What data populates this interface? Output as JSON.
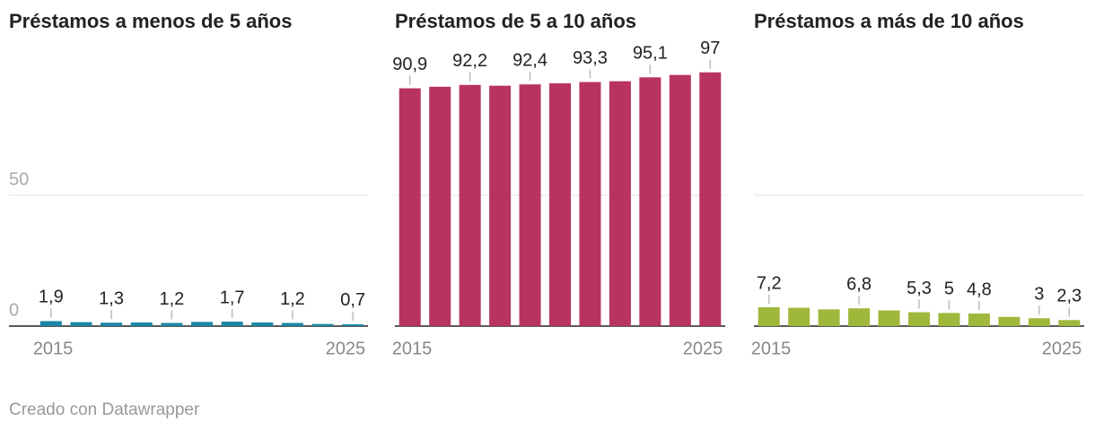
{
  "chart_data": [
    {
      "type": "bar",
      "title": "Préstamos a menos de 5 años",
      "color": "#1b87a6",
      "categories": [
        "2015",
        null,
        null,
        null,
        null,
        null,
        null,
        null,
        null,
        null,
        "2025"
      ],
      "values": [
        1.9,
        1.5,
        1.3,
        1.4,
        1.2,
        1.6,
        1.7,
        1.4,
        1.2,
        0.8,
        0.7
      ],
      "value_labels": [
        "1,9",
        null,
        "1,3",
        null,
        "1,2",
        null,
        "1,7",
        null,
        "1,2",
        null,
        "0,7"
      ],
      "ylim": [
        0,
        100
      ],
      "yticks": [
        0,
        50
      ],
      "grid": true
    },
    {
      "type": "bar",
      "title": "Préstamos de 5 a 10 años",
      "color": "#b93361",
      "categories": [
        "2015",
        null,
        null,
        null,
        null,
        null,
        null,
        null,
        null,
        null,
        "2025"
      ],
      "values": [
        90.9,
        91.5,
        92.2,
        91.9,
        92.4,
        92.8,
        93.3,
        93.6,
        95.1,
        96.0,
        97
      ],
      "value_labels": [
        "90,9",
        null,
        "92,2",
        null,
        "92,4",
        null,
        "93,3",
        null,
        "95,1",
        null,
        "97"
      ],
      "ylim": [
        0,
        100
      ],
      "yticks": [
        0,
        50
      ],
      "grid": true
    },
    {
      "type": "bar",
      "title": "Préstamos a más de 10 años",
      "color": "#9fb83b",
      "categories": [
        "2015",
        null,
        null,
        null,
        null,
        null,
        null,
        null,
        null,
        null,
        "2025"
      ],
      "values": [
        7.2,
        7.0,
        6.4,
        6.8,
        6.0,
        5.3,
        5,
        4.8,
        3.5,
        3,
        2.3
      ],
      "value_labels": [
        "7,2",
        null,
        null,
        "6,8",
        null,
        "5,3",
        "5",
        "4,8",
        null,
        "3",
        "2,3"
      ],
      "ylim": [
        0,
        100
      ],
      "yticks": [
        0,
        50
      ],
      "grid": true
    }
  ],
  "footer": "Creado con Datawrapper"
}
